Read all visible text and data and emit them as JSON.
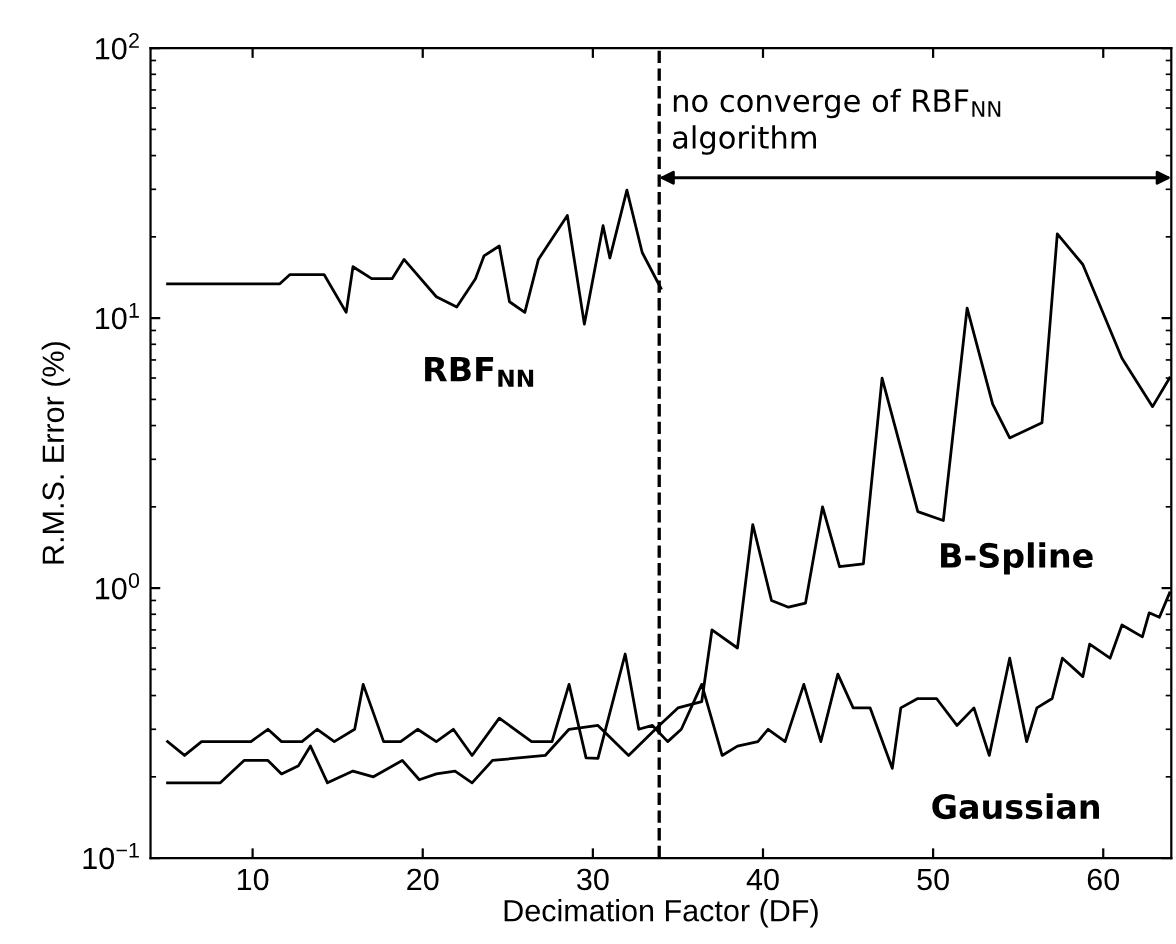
{
  "chart_data": {
    "type": "line",
    "xlabel": "Decimation Factor (DF)",
    "ylabel": "R.M.S. Error (%)",
    "log": "y",
    "xlim": [
      4,
      64
    ],
    "xticks": [
      10,
      20,
      30,
      40,
      50,
      60
    ],
    "ylim": [
      0.1,
      100
    ],
    "yticks": [
      {
        "value": 0.1,
        "label": "10$^{−1}$"
      },
      {
        "value": 1,
        "label": "10$^{0}$"
      },
      {
        "value": 10,
        "label": "10$^{1}$"
      },
      {
        "value": 100,
        "label": "10$^{2}$"
      }
    ],
    "grid": false,
    "legend": false,
    "marker": "none",
    "line_style": "solid",
    "series": [
      {
        "color": "#000000",
        "x": [
          5,
          11.6,
          12.2,
          14.2,
          15.5,
          15.9,
          17,
          18.2,
          18.9,
          20.8,
          22,
          23.1,
          23.6,
          24.5,
          25.1,
          26,
          26.8,
          28.5,
          29.5,
          30.6,
          31,
          32,
          32.9,
          34
        ],
        "values": [
          13.4,
          13.4,
          14.5,
          14.5,
          10.5,
          15.5,
          14,
          14,
          16.5,
          12,
          11,
          14,
          17,
          18.5,
          11.5,
          10.5,
          16.5,
          24,
          9.5,
          22,
          16.7,
          29.8,
          17.5,
          12.9
        ]
      },
      {
        "color": "#000000",
        "x": [
          5,
          6,
          7,
          9.9,
          10.9,
          11.7,
          12.9,
          13.8,
          14.8,
          16,
          16.5,
          17.7,
          18.7,
          19.7,
          20.8,
          21.8,
          22.9,
          24.5,
          26.4,
          27.6,
          28.6,
          29.6,
          30.3,
          31.9,
          32.7,
          33.5,
          34.4,
          35.2,
          36.4,
          37.6,
          38.5,
          39.7,
          40.3,
          41.3,
          42.4,
          43.4,
          44.4,
          45.3,
          46.3,
          47.6,
          48.1,
          49.1,
          50.2,
          51.4,
          52.4,
          53.3,
          54.5,
          55.5,
          56.1,
          57,
          57.6,
          58.8,
          59.2,
          60.4,
          61.1,
          62.3,
          62.7,
          63.3,
          63.9
        ],
        "values": [
          0.27,
          0.24,
          0.27,
          0.27,
          0.3,
          0.27,
          0.27,
          0.3,
          0.27,
          0.3,
          0.44,
          0.27,
          0.27,
          0.3,
          0.27,
          0.3,
          0.24,
          0.33,
          0.27,
          0.27,
          0.44,
          0.235,
          0.234,
          0.57,
          0.3,
          0.31,
          0.27,
          0.3,
          0.44,
          0.24,
          0.26,
          0.27,
          0.3,
          0.27,
          0.44,
          0.27,
          0.48,
          0.36,
          0.36,
          0.215,
          0.36,
          0.39,
          0.39,
          0.31,
          0.36,
          0.24,
          0.55,
          0.27,
          0.36,
          0.39,
          0.55,
          0.47,
          0.62,
          0.55,
          0.73,
          0.66,
          0.81,
          0.78,
          0.96
        ]
      },
      {
        "color": "#000000",
        "x": [
          5,
          8.1,
          9.5,
          10.9,
          11.7,
          12.7,
          13.4,
          14.4,
          15.9,
          17.1,
          18.8,
          19.8,
          20.8,
          21.9,
          22.9,
          24.1,
          27.2,
          28.6,
          30.3,
          32.1,
          33.9,
          35,
          36.4,
          37,
          38.5,
          39.4,
          40.5,
          41.5,
          42.5,
          43.5,
          44.5,
          45.9,
          47,
          49.1,
          50.6,
          52,
          53.5,
          54.5,
          56.4,
          57.3,
          58.8,
          61.1,
          62.9,
          63.9
        ],
        "values": [
          0.19,
          0.19,
          0.23,
          0.23,
          0.205,
          0.22,
          0.26,
          0.19,
          0.21,
          0.2,
          0.23,
          0.195,
          0.205,
          0.21,
          0.19,
          0.23,
          0.24,
          0.3,
          0.31,
          0.24,
          0.31,
          0.36,
          0.38,
          0.7,
          0.6,
          1.72,
          0.9,
          0.85,
          0.88,
          2,
          1.2,
          1.23,
          6,
          1.92,
          1.78,
          10.9,
          4.8,
          3.6,
          4.1,
          20.5,
          15.8,
          7.1,
          4.7,
          6
        ]
      }
    ],
    "ref_lines": [
      {
        "axis": "x",
        "value": 33.9,
        "color": "#000000",
        "line_style": "dashed"
      }
    ],
    "annotations": [
      "no converge of RBF$_{NN}$\nalgorithm",
      "RBF$_{NN}$",
      "B-Spline",
      "Gaussian"
    ]
  }
}
